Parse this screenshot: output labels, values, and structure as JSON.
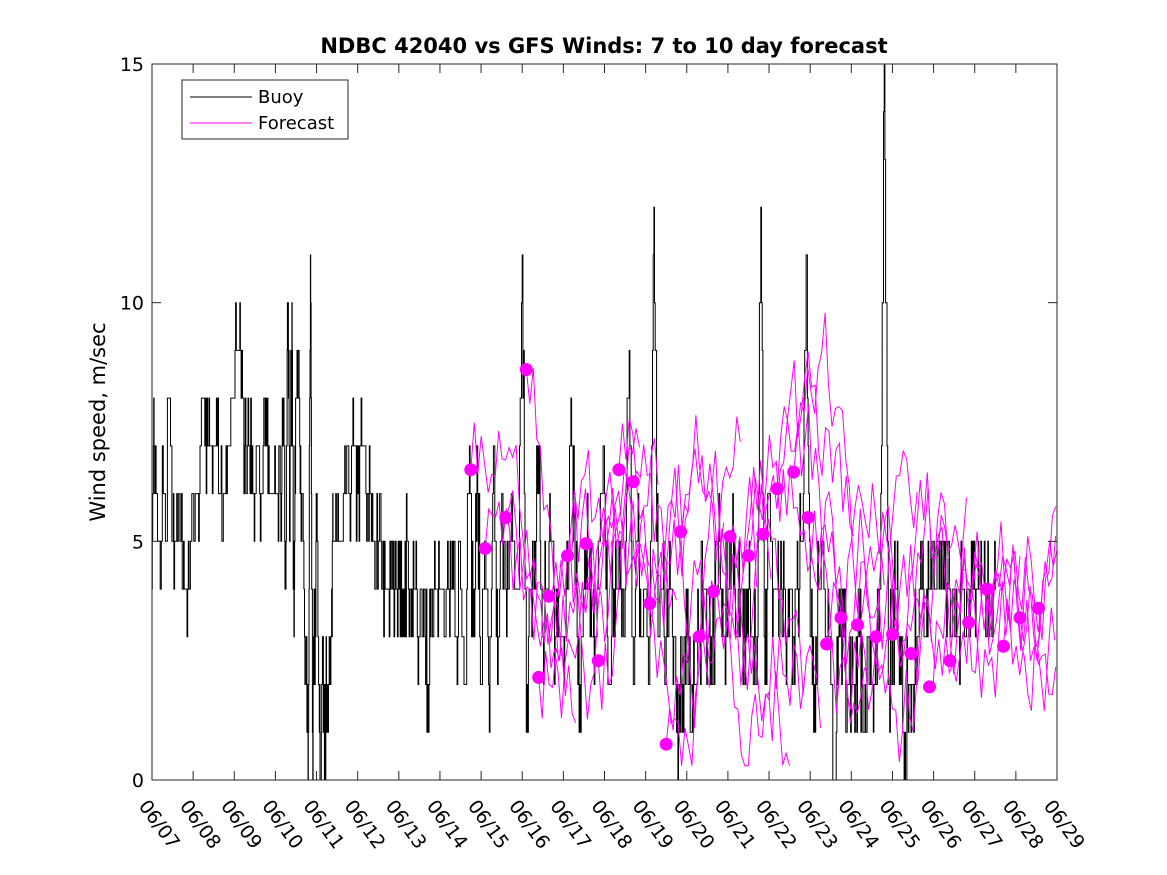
{
  "chart_data": {
    "type": "line",
    "title": "NDBC 42040 vs GFS Winds: 7 to 10 day forecast",
    "xlabel": "",
    "ylabel": "Wind speed, m/sec",
    "xlim": [
      "06/07",
      "06/29"
    ],
    "ylim": [
      0,
      15
    ],
    "yticks": [
      0,
      5,
      10,
      15
    ],
    "xticks": [
      "06/07",
      "06/08",
      "06/09",
      "06/10",
      "06/11",
      "06/12",
      "06/13",
      "06/14",
      "06/15",
      "06/16",
      "06/17",
      "06/18",
      "06/19",
      "06/20",
      "06/21",
      "06/22",
      "06/23",
      "06/24",
      "06/25",
      "06/26",
      "06/27",
      "06/28",
      "06/29"
    ],
    "legend": {
      "placement": "top-left",
      "entries": [
        "Buoy",
        "Forecast"
      ]
    },
    "colors": {
      "buoy": "#000000",
      "forecast": "#ff00ff"
    },
    "grid": false,
    "buoy_series": {
      "name": "Buoy",
      "x_days_since_0607": [
        0.0,
        0.05,
        0.15,
        0.3,
        0.45,
        0.55,
        0.65,
        0.75,
        0.85,
        0.95,
        1.05,
        1.15,
        1.25,
        1.35,
        1.45,
        1.55,
        1.65,
        1.75,
        1.85,
        1.95,
        2.05,
        2.15,
        2.25,
        2.35,
        2.45,
        2.55,
        2.65,
        2.75,
        2.85,
        2.95,
        3.05,
        3.15,
        3.2,
        3.25,
        3.3,
        3.35,
        3.4,
        3.45,
        3.5,
        3.55,
        3.6,
        3.65,
        3.7,
        3.75,
        3.8,
        3.85,
        3.9,
        3.95,
        4.0,
        4.05,
        4.1,
        4.15,
        4.2,
        4.25,
        4.3,
        4.35,
        4.4,
        4.5,
        4.6,
        4.7,
        4.8,
        4.9,
        5.0,
        5.1,
        5.2,
        5.3,
        5.4,
        5.5,
        5.6,
        5.7,
        5.8,
        5.9,
        6.0,
        6.1,
        6.2,
        6.3,
        6.4,
        6.5,
        6.6,
        6.7,
        6.8,
        6.9,
        7.0,
        7.1,
        7.2,
        7.3,
        7.4,
        7.5,
        7.6,
        7.7,
        7.8,
        7.9,
        8.0,
        8.1,
        8.2,
        8.3,
        8.4,
        8.5,
        8.6,
        8.7,
        8.8,
        8.9,
        9.0,
        9.1,
        9.2,
        9.3,
        9.4,
        9.5,
        9.6,
        9.7,
        9.8,
        9.9,
        10.0,
        10.1,
        10.2,
        10.3,
        10.4,
        10.5,
        10.6,
        10.7,
        10.8,
        10.9,
        11.0,
        11.1,
        11.2,
        11.3,
        11.4,
        11.5,
        11.6,
        11.7,
        11.8,
        11.9,
        12.0,
        12.1,
        12.2,
        12.3,
        12.4,
        12.5,
        12.6,
        12.7,
        12.8,
        12.9,
        13.0,
        13.1,
        13.2,
        13.3,
        13.4,
        13.5,
        13.6,
        13.7,
        13.8,
        13.9,
        14.0,
        14.1,
        14.2,
        14.3,
        14.4,
        14.5,
        14.6,
        14.7,
        14.8,
        14.9,
        15.0,
        15.1,
        15.2,
        15.3,
        15.4,
        15.5,
        15.6,
        15.7,
        15.8,
        15.9,
        16.0,
        16.1,
        16.2,
        16.3,
        16.4,
        16.5,
        16.6,
        16.7,
        16.8,
        16.9,
        17.0,
        17.1,
        17.2,
        17.3,
        17.4,
        17.5,
        17.6,
        17.7,
        17.8,
        17.9,
        18.0,
        18.1,
        18.2,
        18.3,
        18.4,
        18.5,
        18.6,
        18.7,
        18.8,
        18.9,
        19.0,
        19.1,
        19.2,
        19.3,
        19.4,
        19.5,
        19.6,
        19.7,
        19.8,
        19.9,
        20.0,
        20.1,
        20.2,
        20.3,
        20.4,
        20.5,
        20.6,
        20.7,
        20.8,
        20.9,
        21.0,
        21.1,
        21.2,
        21.3,
        21.4,
        21.5,
        21.6,
        21.7,
        21.8,
        21.9,
        22.0
      ],
      "values": [
        4,
        7,
        5,
        6,
        7,
        5,
        6,
        4,
        3,
        5,
        6,
        6,
        8,
        7,
        7,
        7,
        6,
        6,
        7,
        8,
        9,
        9,
        7,
        7,
        6,
        7,
        6,
        7,
        6,
        6,
        6,
        6,
        8,
        4,
        10,
        5,
        10,
        3,
        8,
        9,
        6,
        6,
        4,
        2,
        1,
        11,
        1,
        3,
        5,
        2,
        0,
        3,
        1,
        2,
        2,
        3,
        5,
        5,
        5,
        6,
        6,
        7,
        6,
        7,
        6,
        6,
        5,
        5,
        4,
        4,
        4,
        4,
        4,
        3,
        5,
        3,
        4,
        3,
        4,
        2,
        4,
        4,
        4,
        3,
        4,
        5,
        3,
        4,
        2,
        6,
        3,
        7,
        2,
        5,
        1,
        7,
        2,
        6,
        4,
        5,
        5,
        4,
        11,
        1,
        4,
        5,
        6,
        3,
        4,
        5,
        3,
        3,
        3,
        4,
        7,
        4,
        2,
        4,
        5,
        3,
        3,
        6,
        6,
        2,
        4,
        4,
        4,
        4,
        9,
        2,
        5,
        3,
        4,
        3,
        12,
        3,
        4,
        3,
        4,
        3,
        1,
        2,
        3,
        1,
        2,
        3,
        4,
        3,
        2,
        4,
        5,
        3,
        4,
        5,
        3,
        4,
        3,
        4,
        3,
        2,
        12,
        2,
        6,
        4,
        4,
        4,
        3,
        4,
        3,
        4,
        5,
        11,
        3,
        2,
        4,
        5,
        3,
        2,
        0,
        4,
        3,
        2,
        2,
        2,
        3,
        1,
        3,
        2,
        2,
        4,
        15,
        2,
        3,
        4,
        2,
        1,
        2,
        2,
        3,
        4,
        3,
        4,
        5,
        5,
        5,
        4,
        4,
        4,
        3,
        4,
        4,
        4,
        4,
        4,
        4,
        4,
        4,
        4
      ]
    },
    "forecast_dots": {
      "name": "Forecast",
      "x_days_since_0607": [
        7.75,
        8.1,
        8.6,
        9.1,
        9.4,
        9.65,
        10.1,
        10.55,
        10.85,
        11.35,
        11.7,
        12.1,
        12.5,
        12.85,
        13.3,
        13.65,
        14.05,
        14.5,
        14.85,
        15.2,
        15.6,
        15.95,
        16.4,
        16.75,
        17.15,
        17.6,
        18.0,
        18.45,
        18.9,
        19.4,
        19.85,
        20.3,
        20.7,
        21.1,
        21.55
      ],
      "values": [
        6.5,
        4.85,
        5.5,
        8.6,
        2.15,
        3.85,
        4.7,
        4.95,
        2.5,
        6.5,
        6.25,
        3.7,
        0.75,
        5.2,
        3.0,
        3.95,
        5.1,
        4.7,
        5.15,
        6.1,
        6.45,
        5.5,
        2.85,
        3.4,
        3.25,
        3.0,
        3.05,
        2.65,
        1.95,
        2.5,
        3.3,
        4.0,
        2.8,
        3.4,
        3.6
      ]
    },
    "forecast_lines": {
      "name": "Forecast",
      "count": 18
    }
  }
}
